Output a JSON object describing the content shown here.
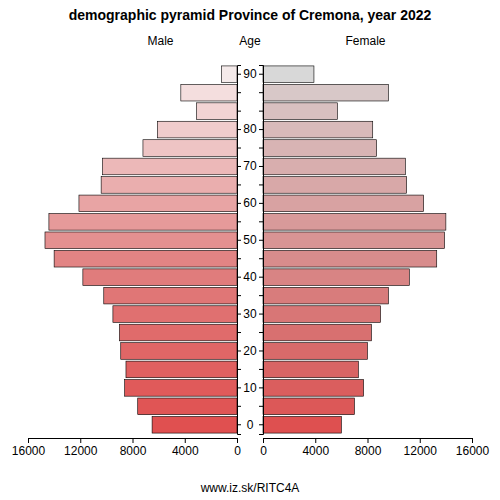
{
  "chart_data": {
    "type": "bar",
    "orientation": "horizontal",
    "title": "demographic pyramid Province of Cremona, year 2022",
    "ylabel": "Age",
    "annotations": [
      "www.iz.sk/RITC4A"
    ],
    "categories": [
      "0",
      null,
      "10",
      null,
      "20",
      null,
      "30",
      null,
      "40",
      null,
      "50",
      null,
      "60",
      null,
      "70",
      null,
      "80",
      null,
      null,
      "90"
    ],
    "series": [
      {
        "name": "Male",
        "values": [
          6500,
          7600,
          8600,
          8500,
          8900,
          9000,
          9500,
          10200,
          11800,
          14000,
          14700,
          14400,
          12100,
          10400,
          10300,
          7200,
          6100,
          3100,
          4300,
          1200
        ],
        "colors": [
          "#e05050",
          "#e05555",
          "#e05a5a",
          "#e06060",
          "#e06666",
          "#e06b6b",
          "#e07070",
          "#e07676",
          "#e07c7c",
          "#e28484",
          "#e49090",
          "#e69a9a",
          "#e8a4a4",
          "#eaaeae",
          "#ecb8b8",
          "#eec4c4",
          "#f0cccc",
          "#f2d4d4",
          "#f4dede",
          "#f4eaea"
        ]
      },
      {
        "name": "Female",
        "values": [
          6000,
          7000,
          7700,
          7300,
          8000,
          8300,
          9000,
          9600,
          11200,
          13300,
          13900,
          14000,
          12300,
          11000,
          10900,
          8700,
          8400,
          5700,
          9600,
          3900
        ],
        "colors": [
          "#de5050",
          "#dc5858",
          "#da5e5e",
          "#d86464",
          "#d86a6a",
          "#d87070",
          "#d87676",
          "#d87c7c",
          "#d88484",
          "#d88c8c",
          "#d89494",
          "#d89a9a",
          "#d8a2a2",
          "#d8a8a8",
          "#d8aeae",
          "#d8b4b4",
          "#d8baba",
          "#d8c0c0",
          "#d8c8c8",
          "#d8d8d8"
        ]
      }
    ],
    "xlim": [
      0,
      16000
    ],
    "xticks": [
      0,
      4000,
      8000,
      12000,
      16000
    ]
  }
}
